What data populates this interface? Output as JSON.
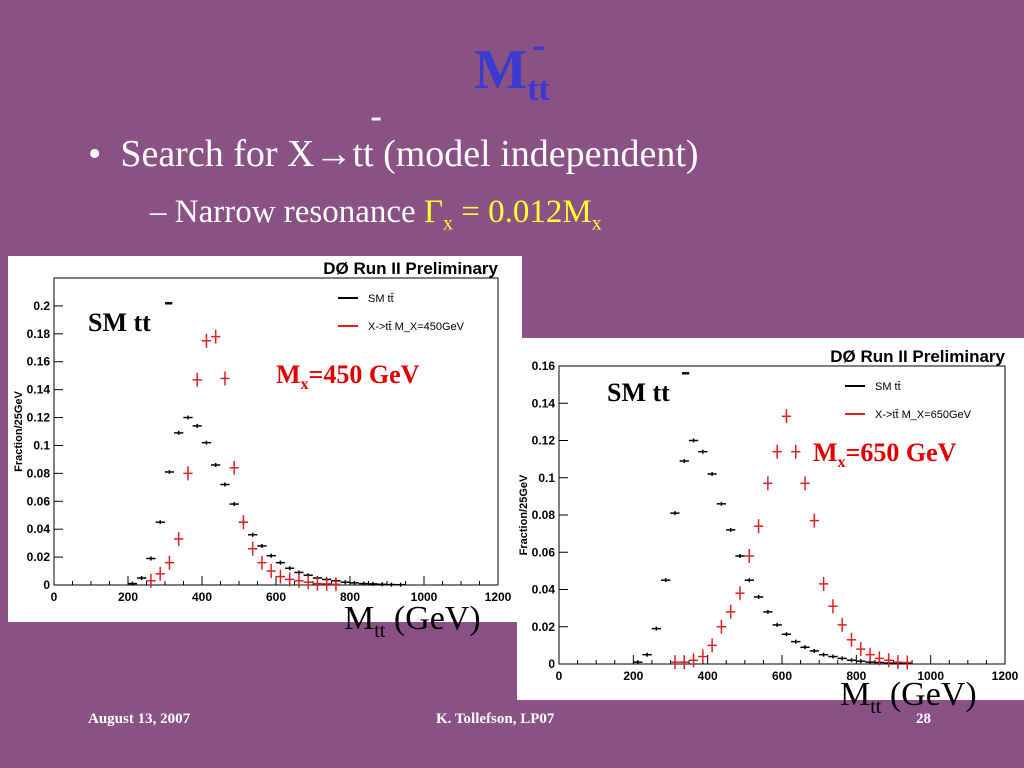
{
  "slide": {
    "title_main": "M",
    "title_sub": "tt",
    "title_bar": "-",
    "bullet_text": "Search for X",
    "bullet_arrow": "→",
    "bullet_tt": "tt",
    "bullet_tt_bar": "-",
    "bullet_rest": " (model independent)",
    "subbullet_dash": "– ",
    "subbullet_text": "Narrow resonance ",
    "subbullet_gamma": "Γ",
    "subbullet_x": "x",
    "subbullet_eq": " = 0.012M",
    "subbullet_x2": "x",
    "footer_date": "August 13, 2007",
    "footer_author": "K. Tollefson, LP07",
    "footer_page": "28"
  },
  "colors": {
    "background": "#8a5184",
    "title": "#3a3ad0",
    "highlight": "#ffff33",
    "sm_series": "#000000",
    "x_series": "#e02020",
    "label_red": "#e00000"
  },
  "chart_data": [
    {
      "type": "scatter",
      "title": "DØ Run II Preliminary",
      "ylabel": "Fraction/25GeV",
      "xlim": [
        0,
        1200
      ],
      "ylim": [
        0,
        0.22
      ],
      "xticks": [
        "0",
        "200",
        "400",
        "600",
        "800",
        "1000",
        "1200"
      ],
      "yticks": [
        "0",
        "0.02",
        "0.04",
        "0.06",
        "0.08",
        "0.1",
        "0.12",
        "0.14",
        "0.16",
        "0.18",
        "0.2"
      ],
      "legend_placement": "top-right",
      "legend": [
        "SM tt̄",
        "X->tt̄ M_X=450GeV"
      ],
      "annotation_sm": "SM tt",
      "annotation_sm_bar": "-",
      "annotation_mx_m": "M",
      "annotation_mx_x": "x",
      "annotation_mx_val": "=450 GeV",
      "xcaption_m": "M",
      "xcaption_sub": "tt",
      "xcaption_unit": " (GeV)",
      "series": [
        {
          "name": "SM tt̄",
          "x": [
            212,
            237,
            262,
            287,
            312,
            337,
            362,
            387,
            412,
            437,
            462,
            487,
            512,
            537,
            562,
            587,
            612,
            637,
            662,
            687,
            712,
            737,
            762,
            787,
            812,
            837,
            862,
            887,
            912,
            937
          ],
          "y": [
            0.001,
            0.005,
            0.019,
            0.045,
            0.081,
            0.109,
            0.12,
            0.114,
            0.102,
            0.086,
            0.072,
            0.058,
            0.045,
            0.036,
            0.028,
            0.021,
            0.016,
            0.012,
            0.009,
            0.007,
            0.005,
            0.004,
            0.003,
            0.002,
            0.0015,
            0.001,
            0.0008,
            0.0005,
            0.0003,
            0.0002
          ]
        },
        {
          "name": "X->tt̄ M_X=450GeV",
          "x": [
            262,
            287,
            312,
            337,
            362,
            387,
            412,
            437,
            462,
            487,
            512,
            537,
            562,
            587,
            612,
            637,
            662,
            687,
            712,
            737,
            762
          ],
          "y": [
            0.003,
            0.008,
            0.016,
            0.033,
            0.08,
            0.147,
            0.175,
            0.178,
            0.148,
            0.084,
            0.045,
            0.026,
            0.016,
            0.01,
            0.006,
            0.004,
            0.003,
            0.002,
            0.001,
            0.0008,
            0.0005
          ]
        }
      ]
    },
    {
      "type": "scatter",
      "title": "DØ Run II Preliminary",
      "ylabel": "Fraction/25GeV",
      "xlim": [
        0,
        1200
      ],
      "ylim": [
        0,
        0.16
      ],
      "xticks": [
        "0",
        "200",
        "400",
        "600",
        "800",
        "1000",
        "1200"
      ],
      "yticks": [
        "0",
        "0.02",
        "0.04",
        "0.06",
        "0.08",
        "0.1",
        "0.12",
        "0.14",
        "0.16"
      ],
      "legend_placement": "top-right",
      "legend": [
        "SM tt̄",
        "X->tt̄ M_X=650GeV"
      ],
      "annotation_sm": "SM tt",
      "annotation_sm_bar": "-",
      "annotation_mx_m": "M",
      "annotation_mx_x": "x",
      "annotation_mx_val": "=650 GeV",
      "xcaption_m": "M",
      "xcaption_sub": "tt",
      "xcaption_unit": " (GeV)",
      "series": [
        {
          "name": "SM tt̄",
          "x": [
            212,
            237,
            262,
            287,
            312,
            337,
            362,
            387,
            412,
            437,
            462,
            487,
            512,
            537,
            562,
            587,
            612,
            637,
            662,
            687,
            712,
            737,
            762,
            787,
            812,
            837,
            862,
            887,
            912,
            937
          ],
          "y": [
            0.001,
            0.005,
            0.019,
            0.045,
            0.081,
            0.109,
            0.12,
            0.114,
            0.102,
            0.086,
            0.072,
            0.058,
            0.045,
            0.036,
            0.028,
            0.021,
            0.016,
            0.012,
            0.009,
            0.007,
            0.005,
            0.004,
            0.003,
            0.002,
            0.0015,
            0.001,
            0.0008,
            0.0005,
            0.0003,
            0.0002
          ]
        },
        {
          "name": "X->tt̄ M_X=650GeV",
          "x": [
            312,
            337,
            362,
            387,
            412,
            437,
            462,
            487,
            512,
            537,
            562,
            587,
            612,
            637,
            662,
            687,
            712,
            737,
            762,
            787,
            812,
            837,
            862,
            887,
            912,
            937
          ],
          "y": [
            0.001,
            0.001,
            0.002,
            0.004,
            0.01,
            0.02,
            0.028,
            0.038,
            0.058,
            0.074,
            0.097,
            0.114,
            0.133,
            0.114,
            0.097,
            0.077,
            0.043,
            0.031,
            0.021,
            0.013,
            0.008,
            0.005,
            0.003,
            0.002,
            0.001,
            0.0008
          ]
        }
      ]
    }
  ]
}
